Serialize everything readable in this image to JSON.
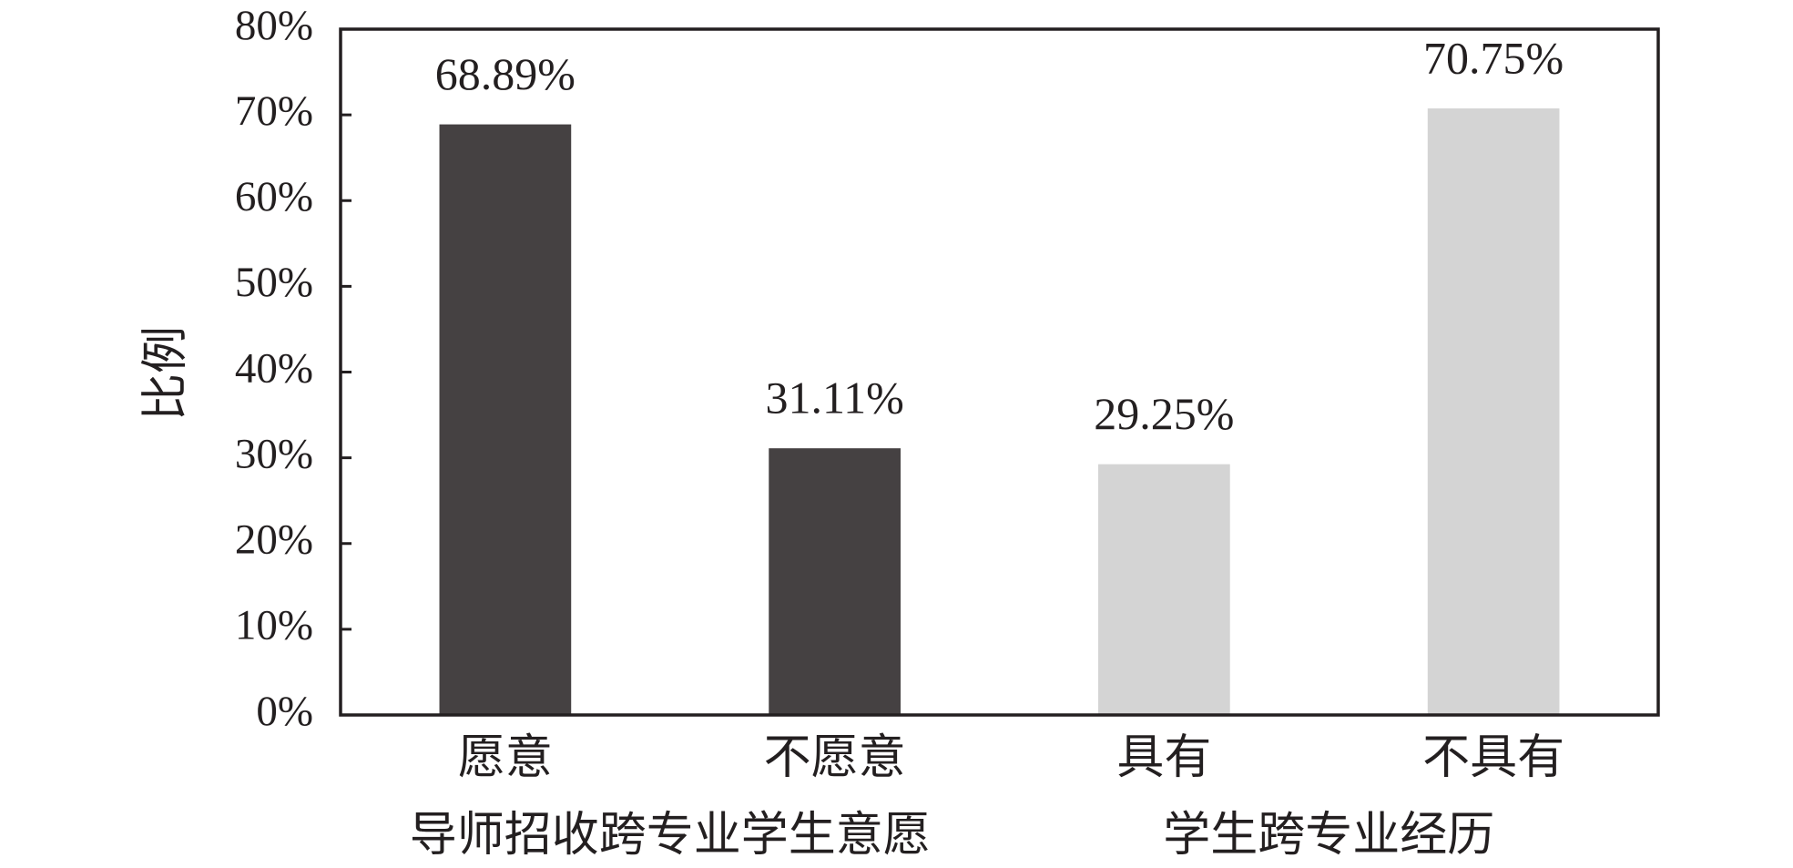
{
  "chart_data": {
    "type": "bar",
    "y_label": "比例",
    "categories": [
      "愿意",
      "不愿意",
      "具有",
      "不具有"
    ],
    "groups": [
      "导师招收跨专业学生意愿",
      "学生跨专业经历"
    ],
    "values": [
      68.89,
      31.11,
      29.25,
      70.75
    ],
    "value_labels": [
      "68.89%",
      "31.11%",
      "29.25%",
      "70.75%"
    ],
    "colors": [
      "#454142",
      "#454142",
      "#d4d4d4",
      "#d4d4d4"
    ],
    "ylim": [
      0,
      80
    ],
    "yticks": [
      {
        "value": 0,
        "label": "0%"
      },
      {
        "value": 10,
        "label": "10%"
      },
      {
        "value": 20,
        "label": "20%"
      },
      {
        "value": 30,
        "label": "30%"
      },
      {
        "value": 40,
        "label": "40%"
      },
      {
        "value": 50,
        "label": "50%"
      },
      {
        "value": 60,
        "label": "60%"
      },
      {
        "value": 70,
        "label": "70%"
      },
      {
        "value": 80,
        "label": "80%"
      }
    ],
    "grid": false
  }
}
